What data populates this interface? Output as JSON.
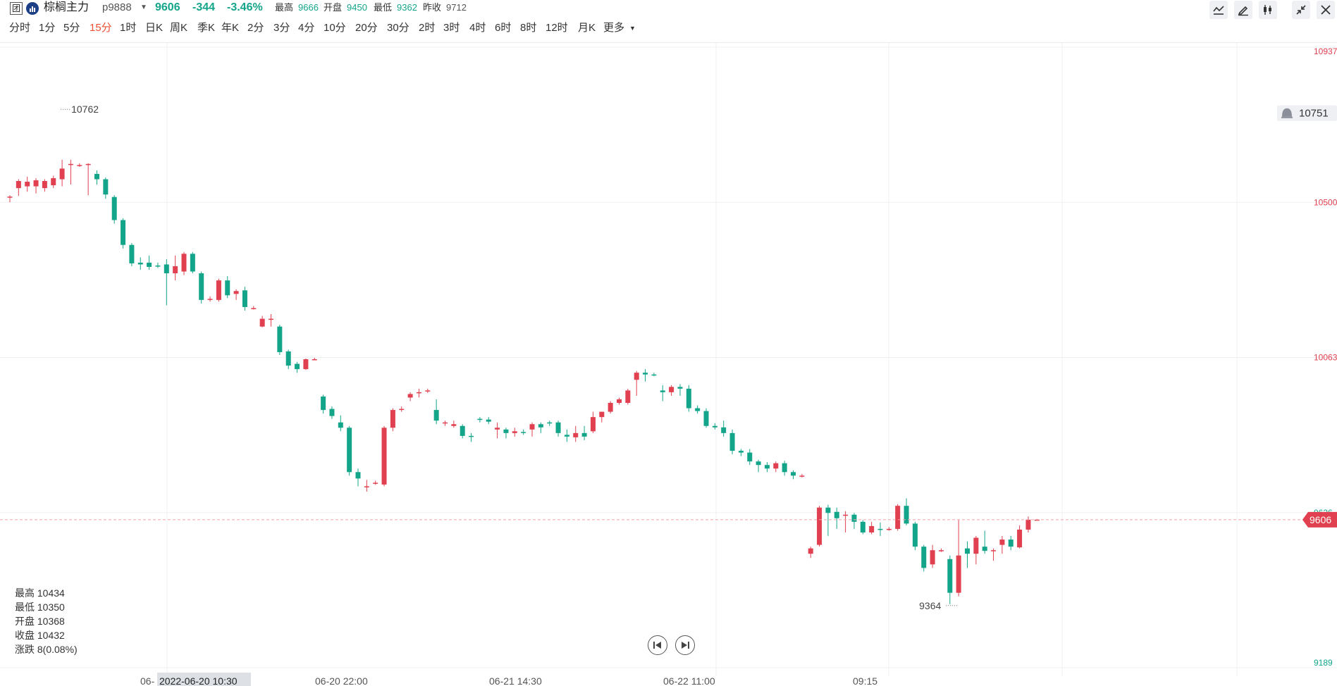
{
  "header": {
    "logo_glyph": "团",
    "name": "棕榈主力",
    "code": "p9888",
    "price": "9606",
    "change": "-344",
    "change_pct": "-3.46%",
    "high_label": "最高",
    "high_value": "9666",
    "open_label": "开盘",
    "open_value": "9450",
    "low_label": "最低",
    "low_value": "9362",
    "prev_label": "昨收",
    "prev_value": "9712"
  },
  "toolbar": {
    "icons": [
      "line-chart-icon",
      "edit-pen-icon",
      "candlestick-icon",
      "collapse-icon",
      "close-icon"
    ]
  },
  "periods": {
    "items": [
      "分时",
      "1分",
      "5分",
      "15分",
      "1时",
      "日K",
      "周K",
      "季K",
      "年K",
      "2分",
      "3分",
      "4分",
      "10分",
      "20分",
      "30分",
      "2时",
      "3时",
      "4时",
      "6时",
      "8时",
      "12时",
      "月K",
      "更多"
    ],
    "active": "15分"
  },
  "info": {
    "high": "最高 10434",
    "low": "最低 10350",
    "open": "开盘 10368",
    "close": "收盘 10432",
    "change": "涨跌 8(0.08%)"
  },
  "colors": {
    "up": "#e0404f",
    "down": "#13a58a",
    "grid": "#eef0f3",
    "last_price_line": "#f2a0a8",
    "axis_up_text": "#e0404f",
    "axis_down_text": "#13a58a"
  },
  "chart_data": {
    "type": "candlestick",
    "ylim": [
      9189,
      10937
    ],
    "y_tick_labels": [
      "10937",
      "10500",
      "10063",
      "9626",
      "9189"
    ],
    "x_tick_labels": [
      "06-",
      "06-20 22:00",
      "06-21 14:30",
      "06-22 11:00",
      "09:15"
    ],
    "crosshair_time": "2022-06-20 10:30",
    "last_price_label": "9606",
    "alert_price_label": "10751",
    "max_marker": "10762",
    "min_marker": "9364",
    "grid": true,
    "candles": [
      {
        "o": 10513,
        "h": 10520,
        "l": 10500,
        "c": 10516
      },
      {
        "o": 10540,
        "h": 10565,
        "l": 10518,
        "c": 10560
      },
      {
        "o": 10545,
        "h": 10572,
        "l": 10530,
        "c": 10558
      },
      {
        "o": 10545,
        "h": 10568,
        "l": 10525,
        "c": 10562
      },
      {
        "o": 10540,
        "h": 10565,
        "l": 10530,
        "c": 10560
      },
      {
        "o": 10548,
        "h": 10575,
        "l": 10540,
        "c": 10568
      },
      {
        "o": 10565,
        "h": 10620,
        "l": 10545,
        "c": 10595
      },
      {
        "o": 10605,
        "h": 10620,
        "l": 10550,
        "c": 10608
      },
      {
        "o": 10605,
        "h": 10610,
        "l": 10600,
        "c": 10605
      },
      {
        "o": 10606,
        "h": 10610,
        "l": 10520,
        "c": 10608
      },
      {
        "o": 10580,
        "h": 10590,
        "l": 10550,
        "c": 10565
      },
      {
        "o": 10565,
        "h": 10570,
        "l": 10510,
        "c": 10522
      },
      {
        "o": 10515,
        "h": 10520,
        "l": 10440,
        "c": 10450
      },
      {
        "o": 10450,
        "h": 10455,
        "l": 10370,
        "c": 10380
      },
      {
        "o": 10380,
        "h": 10385,
        "l": 10320,
        "c": 10328
      },
      {
        "o": 10330,
        "h": 10345,
        "l": 10310,
        "c": 10325
      },
      {
        "o": 10330,
        "h": 10350,
        "l": 10310,
        "c": 10318
      },
      {
        "o": 10322,
        "h": 10330,
        "l": 10315,
        "c": 10320
      },
      {
        "o": 10325,
        "h": 10340,
        "l": 10210,
        "c": 10300
      },
      {
        "o": 10300,
        "h": 10350,
        "l": 10280,
        "c": 10320
      },
      {
        "o": 10305,
        "h": 10360,
        "l": 10295,
        "c": 10355
      },
      {
        "o": 10355,
        "h": 10360,
        "l": 10300,
        "c": 10305
      },
      {
        "o": 10300,
        "h": 10305,
        "l": 10215,
        "c": 10225
      },
      {
        "o": 10228,
        "h": 10235,
        "l": 10220,
        "c": 10228
      },
      {
        "o": 10225,
        "h": 10285,
        "l": 10220,
        "c": 10280
      },
      {
        "o": 10280,
        "h": 10292,
        "l": 10230,
        "c": 10238
      },
      {
        "o": 10242,
        "h": 10255,
        "l": 10225,
        "c": 10250
      },
      {
        "o": 10252,
        "h": 10262,
        "l": 10195,
        "c": 10205
      },
      {
        "o": 10202,
        "h": 10208,
        "l": 10198,
        "c": 10202
      },
      {
        "o": 10150,
        "h": 10180,
        "l": 10148,
        "c": 10172
      },
      {
        "o": 10170,
        "h": 10185,
        "l": 10150,
        "c": 10172
      },
      {
        "o": 10150,
        "h": 10155,
        "l": 10070,
        "c": 10078
      },
      {
        "o": 10080,
        "h": 10085,
        "l": 10030,
        "c": 10040
      },
      {
        "o": 10045,
        "h": 10050,
        "l": 10020,
        "c": 10030
      },
      {
        "o": 10030,
        "h": 10060,
        "l": 10028,
        "c": 10058
      },
      {
        "o": 10058,
        "h": 10062,
        "l": 10055,
        "c": 10058
      },
      {
        "o": 9953,
        "h": 9958,
        "l": 9905,
        "c": 9915
      },
      {
        "o": 9918,
        "h": 9925,
        "l": 9890,
        "c": 9898
      },
      {
        "o": 9880,
        "h": 9900,
        "l": 9855,
        "c": 9865
      },
      {
        "o": 9865,
        "h": 9870,
        "l": 9730,
        "c": 9740
      },
      {
        "o": 9740,
        "h": 9750,
        "l": 9700,
        "c": 9722
      },
      {
        "o": 9700,
        "h": 9718,
        "l": 9685,
        "c": 9700
      },
      {
        "o": 9710,
        "h": 9716,
        "l": 9704,
        "c": 9710
      },
      {
        "o": 9705,
        "h": 9870,
        "l": 9700,
        "c": 9865
      },
      {
        "o": 9865,
        "h": 9920,
        "l": 9855,
        "c": 9915
      },
      {
        "o": 9918,
        "h": 9925,
        "l": 9910,
        "c": 9918
      },
      {
        "o": 9950,
        "h": 9965,
        "l": 9940,
        "c": 9960
      },
      {
        "o": 9963,
        "h": 9975,
        "l": 9950,
        "c": 9965
      },
      {
        "o": 9968,
        "h": 9975,
        "l": 9963,
        "c": 9970
      },
      {
        "o": 9915,
        "h": 9945,
        "l": 9875,
        "c": 9885
      },
      {
        "o": 9880,
        "h": 9885,
        "l": 9870,
        "c": 9880
      },
      {
        "o": 9870,
        "h": 9885,
        "l": 9865,
        "c": 9875
      },
      {
        "o": 9870,
        "h": 9875,
        "l": 9835,
        "c": 9842
      },
      {
        "o": 9842,
        "h": 9850,
        "l": 9825,
        "c": 9840
      },
      {
        "o": 9890,
        "h": 9895,
        "l": 9880,
        "c": 9888
      },
      {
        "o": 9888,
        "h": 9895,
        "l": 9875,
        "c": 9882
      },
      {
        "o": 9860,
        "h": 9880,
        "l": 9835,
        "c": 9865
      },
      {
        "o": 9860,
        "h": 9865,
        "l": 9835,
        "c": 9850
      },
      {
        "o": 9850,
        "h": 9865,
        "l": 9840,
        "c": 9855
      },
      {
        "o": 9853,
        "h": 9860,
        "l": 9845,
        "c": 9852
      },
      {
        "o": 9860,
        "h": 9880,
        "l": 9840,
        "c": 9875
      },
      {
        "o": 9875,
        "h": 9880,
        "l": 9850,
        "c": 9866
      },
      {
        "o": 9880,
        "h": 9885,
        "l": 9870,
        "c": 9878
      },
      {
        "o": 9880,
        "h": 9885,
        "l": 9840,
        "c": 9850
      },
      {
        "o": 9845,
        "h": 9860,
        "l": 9825,
        "c": 9840
      },
      {
        "o": 9838,
        "h": 9870,
        "l": 9825,
        "c": 9850
      },
      {
        "o": 9850,
        "h": 9870,
        "l": 9830,
        "c": 9840
      },
      {
        "o": 9855,
        "h": 9910,
        "l": 9850,
        "c": 9895
      },
      {
        "o": 9895,
        "h": 9910,
        "l": 9880,
        "c": 9910
      },
      {
        "o": 9910,
        "h": 9940,
        "l": 9905,
        "c": 9935
      },
      {
        "o": 9935,
        "h": 9950,
        "l": 9930,
        "c": 9945
      },
      {
        "o": 9935,
        "h": 9975,
        "l": 9930,
        "c": 9970
      },
      {
        "o": 10000,
        "h": 10025,
        "l": 9955,
        "c": 10020
      },
      {
        "o": 10020,
        "h": 10030,
        "l": 9995,
        "c": 10015
      },
      {
        "o": 10015,
        "h": 10020,
        "l": 10010,
        "c": 10014
      },
      {
        "o": 9970,
        "h": 9985,
        "l": 9940,
        "c": 9965
      },
      {
        "o": 9965,
        "h": 9985,
        "l": 9955,
        "c": 9980
      },
      {
        "o": 9980,
        "h": 9988,
        "l": 9955,
        "c": 9975
      },
      {
        "o": 9975,
        "h": 9985,
        "l": 9910,
        "c": 9920
      },
      {
        "o": 9920,
        "h": 9928,
        "l": 9905,
        "c": 9912
      },
      {
        "o": 9912,
        "h": 9920,
        "l": 9865,
        "c": 9870
      },
      {
        "o": 9870,
        "h": 9878,
        "l": 9860,
        "c": 9866
      },
      {
        "o": 9866,
        "h": 9885,
        "l": 9840,
        "c": 9850
      },
      {
        "o": 9850,
        "h": 9860,
        "l": 9790,
        "c": 9800
      },
      {
        "o": 9800,
        "h": 9805,
        "l": 9785,
        "c": 9795
      },
      {
        "o": 9795,
        "h": 9805,
        "l": 9760,
        "c": 9770
      },
      {
        "o": 9770,
        "h": 9775,
        "l": 9740,
        "c": 9760
      },
      {
        "o": 9760,
        "h": 9768,
        "l": 9740,
        "c": 9750
      },
      {
        "o": 9750,
        "h": 9770,
        "l": 9740,
        "c": 9765
      },
      {
        "o": 9765,
        "h": 9772,
        "l": 9730,
        "c": 9740
      },
      {
        "o": 9740,
        "h": 9745,
        "l": 9720,
        "c": 9730
      },
      {
        "o": 9730,
        "h": 9735,
        "l": 9725,
        "c": 9730
      },
      {
        "o": 9510,
        "h": 9530,
        "l": 9498,
        "c": 9525
      },
      {
        "o": 9535,
        "h": 9645,
        "l": 9530,
        "c": 9640
      },
      {
        "o": 9640,
        "h": 9648,
        "l": 9560,
        "c": 9625
      },
      {
        "o": 9628,
        "h": 9640,
        "l": 9580,
        "c": 9610
      },
      {
        "o": 9620,
        "h": 9630,
        "l": 9570,
        "c": 9620
      },
      {
        "o": 9620,
        "h": 9625,
        "l": 9580,
        "c": 9600
      },
      {
        "o": 9600,
        "h": 9605,
        "l": 9565,
        "c": 9570
      },
      {
        "o": 9570,
        "h": 9600,
        "l": 9565,
        "c": 9588
      },
      {
        "o": 9580,
        "h": 9598,
        "l": 9560,
        "c": 9578
      },
      {
        "o": 9580,
        "h": 9585,
        "l": 9575,
        "c": 9580
      },
      {
        "o": 9580,
        "h": 9650,
        "l": 9575,
        "c": 9645
      },
      {
        "o": 9645,
        "h": 9666,
        "l": 9590,
        "c": 9595
      },
      {
        "o": 9595,
        "h": 9600,
        "l": 9520,
        "c": 9530
      },
      {
        "o": 9530,
        "h": 9535,
        "l": 9460,
        "c": 9470
      },
      {
        "o": 9480,
        "h": 9535,
        "l": 9470,
        "c": 9520
      },
      {
        "o": 9520,
        "h": 9525,
        "l": 9515,
        "c": 9520
      },
      {
        "o": 9495,
        "h": 9505,
        "l": 9368,
        "c": 9400
      },
      {
        "o": 9400,
        "h": 9605,
        "l": 9390,
        "c": 9505
      },
      {
        "o": 9525,
        "h": 9545,
        "l": 9470,
        "c": 9510
      },
      {
        "o": 9510,
        "h": 9560,
        "l": 9480,
        "c": 9555
      },
      {
        "o": 9530,
        "h": 9575,
        "l": 9510,
        "c": 9518
      },
      {
        "o": 9520,
        "h": 9525,
        "l": 9490,
        "c": 9520
      },
      {
        "o": 9535,
        "h": 9560,
        "l": 9510,
        "c": 9550
      },
      {
        "o": 9550,
        "h": 9560,
        "l": 9520,
        "c": 9530
      },
      {
        "o": 9528,
        "h": 9590,
        "l": 9525,
        "c": 9578
      },
      {
        "o": 9578,
        "h": 9615,
        "l": 9570,
        "c": 9606
      },
      {
        "o": 9606,
        "h": 9608,
        "l": 9604,
        "c": 9606
      }
    ]
  }
}
